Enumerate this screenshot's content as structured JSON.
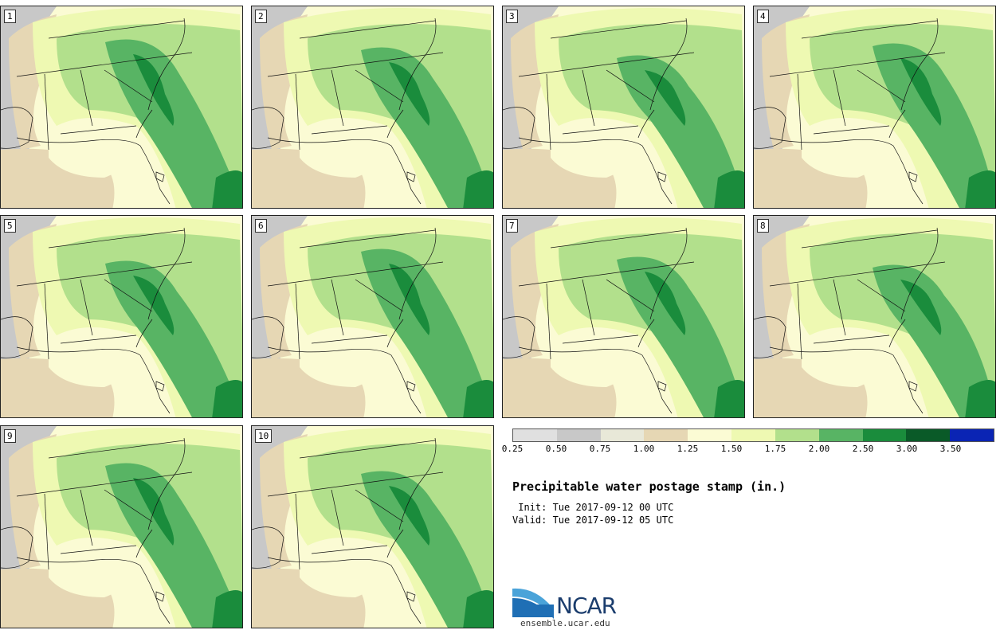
{
  "panels": [
    {
      "label": "1"
    },
    {
      "label": "2"
    },
    {
      "label": "3"
    },
    {
      "label": "4"
    },
    {
      "label": "5"
    },
    {
      "label": "6"
    },
    {
      "label": "7"
    },
    {
      "label": "8"
    },
    {
      "label": "9"
    },
    {
      "label": "10"
    }
  ],
  "colorbar": {
    "colors": [
      "#e0e0e0",
      "#c8c8c8",
      "#e8e8d8",
      "#e6d7b4",
      "#fbfbd4",
      "#eef9b2",
      "#b2e08c",
      "#58b464",
      "#1a8c3c",
      "#0a5a28",
      "#0a24b4"
    ],
    "ticks": [
      "0.25",
      "0.50",
      "0.75",
      "1.00",
      "1.25",
      "1.50",
      "1.75",
      "2.00",
      "2.50",
      "3.00",
      "3.50"
    ]
  },
  "title": "Precipitable water postage stamp (in.)",
  "init_line": " Init: Tue 2017-09-12 00 UTC",
  "valid_line": "Valid: Tue 2017-09-12 05 UTC",
  "logo": {
    "name": "NCAR",
    "url": "ensemble.ucar.edu"
  }
}
